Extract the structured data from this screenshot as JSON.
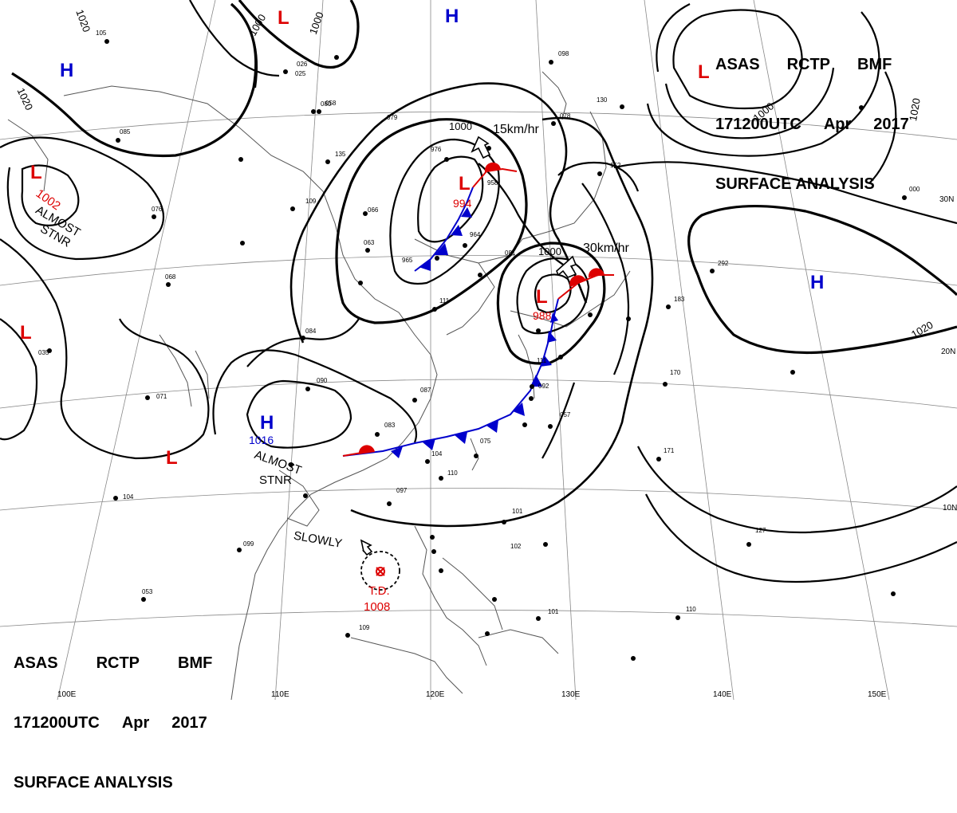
{
  "chart": {
    "agency": "ASAS",
    "station": "RCTP",
    "office": "BMF",
    "valid_time": "171200UTC",
    "month": "Apr",
    "year": "2017",
    "product": "SURFACE ANALYSIS"
  },
  "latitude_labels": [
    "30N",
    "20N",
    "10N"
  ],
  "longitude_labels": [
    "100E",
    "110E",
    "120E",
    "130E",
    "140E",
    "150E"
  ],
  "isobar_labels": [
    "1020",
    "1000",
    "1000",
    "1020",
    "1000",
    "1000",
    "1000",
    "1020",
    "1020"
  ],
  "pressure_centers": [
    {
      "type": "H",
      "value": "",
      "color": "#0000cc"
    },
    {
      "type": "H",
      "value": "",
      "color": "#0000cc"
    },
    {
      "type": "H",
      "value": "1016",
      "color": "#0000cc"
    },
    {
      "type": "H",
      "value": "",
      "color": "#0000cc"
    },
    {
      "type": "L",
      "value": "1002",
      "color": "#dd0000"
    },
    {
      "type": "L",
      "value": "",
      "color": "#dd0000"
    },
    {
      "type": "L",
      "value": "",
      "color": "#dd0000"
    },
    {
      "type": "L",
      "value": "",
      "color": "#dd0000"
    },
    {
      "type": "L",
      "value": "",
      "color": "#dd0000"
    },
    {
      "type": "L",
      "value": "994",
      "color": "#dd0000"
    },
    {
      "type": "L",
      "value": "988",
      "color": "#dd0000"
    }
  ],
  "annotations": {
    "almost_stnr_west": [
      "ALMOST",
      "STNR"
    ],
    "almost_stnr_south": [
      "ALMOST",
      "STNR"
    ],
    "motion_north": "15km/hr",
    "motion_east": "30km/hr",
    "slowly": "SLOWLY",
    "td_label": "T.D.",
    "td_pressure": "1008"
  },
  "station_labels": [
    "105",
    "085",
    "076",
    "068",
    "035",
    "071",
    "104",
    "099",
    "053",
    "109",
    "080",
    "084",
    "090",
    "087",
    "083",
    "104",
    "110",
    "097",
    "057",
    "092",
    "111",
    "075",
    "101",
    "102",
    "171",
    "127",
    "101",
    "110",
    "170",
    "183",
    "292",
    "000",
    "098",
    "078",
    "152",
    "130",
    "135",
    "063",
    "965",
    "111",
    "058",
    "079",
    "026",
    "025",
    "976",
    "958",
    "964",
    "081",
    "066",
    "109"
  ]
}
